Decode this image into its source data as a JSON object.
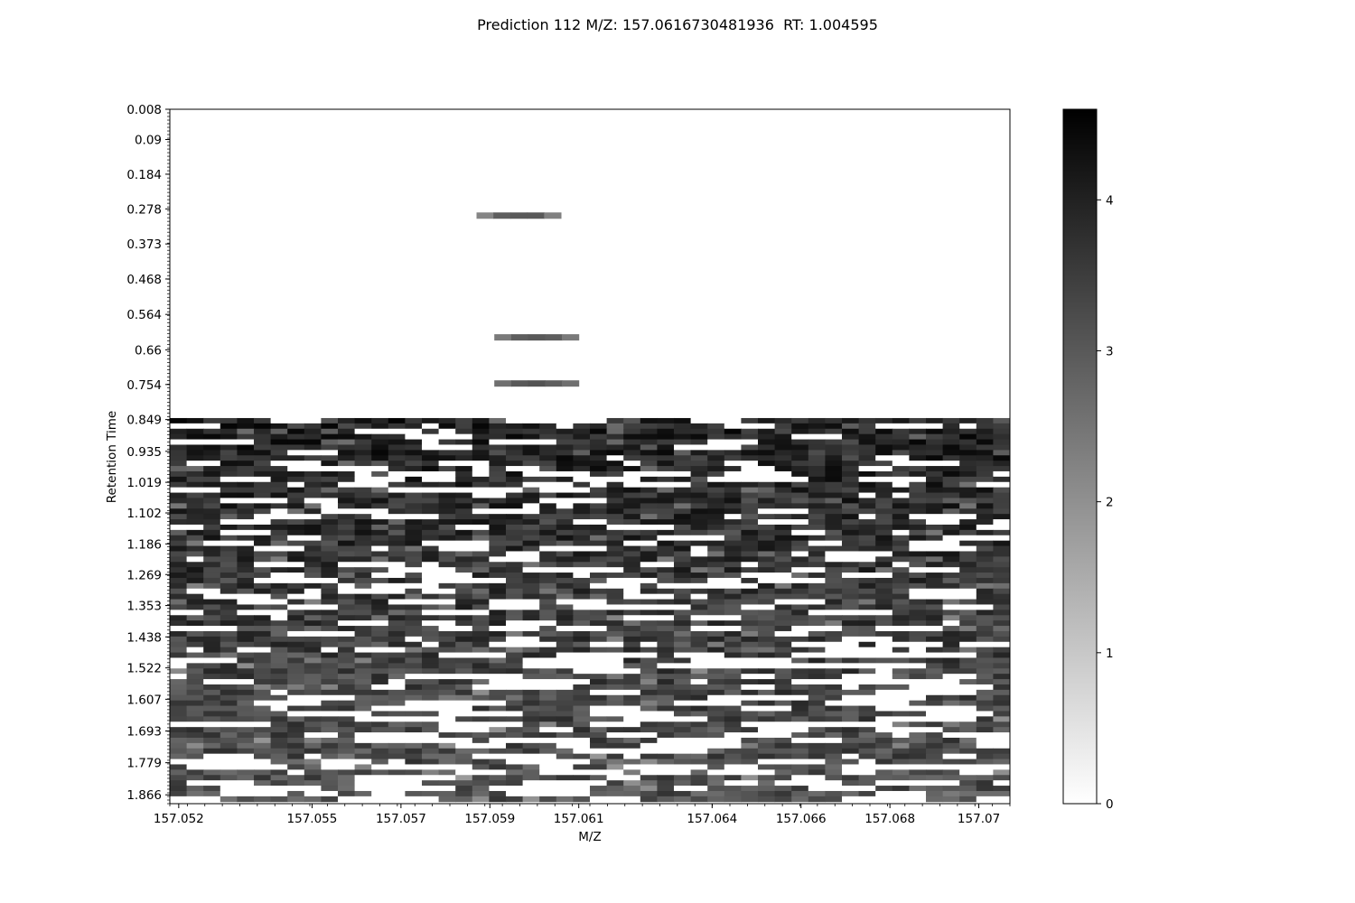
{
  "chart_data": {
    "type": "heatmap",
    "title": "Prediction 112 M/Z: 157.0616730481936  RT: 1.004595",
    "xlabel": "M/Z",
    "ylabel": "Retention Time",
    "xlim": [
      157.0518,
      157.0707
    ],
    "ylim": [
      0.008,
      1.89
    ],
    "x_ticks": [
      157.052,
      157.055,
      157.057,
      157.059,
      157.061,
      157.064,
      157.066,
      157.068,
      157.07
    ],
    "y_ticks": [
      0.008,
      0.09,
      0.184,
      0.278,
      0.373,
      0.468,
      0.564,
      0.66,
      0.754,
      0.849,
      0.935,
      1.019,
      1.102,
      1.186,
      1.269,
      1.353,
      1.438,
      1.522,
      1.607,
      1.693,
      1.779,
      1.866
    ],
    "colormap": "gray_r",
    "colorbar": {
      "min": 0,
      "max": 4.6,
      "ticks": [
        0,
        1,
        2,
        3,
        4
      ]
    },
    "grid": false,
    "values_description_free": true,
    "isolated_peaks": [
      {
        "rt": 0.295,
        "mz_start": 157.0587,
        "mz_end": 157.0606,
        "values": [
          2.2,
          2.9,
          3.0,
          3.0,
          2.3
        ]
      },
      {
        "rt": 0.625,
        "mz_start": 157.0591,
        "mz_end": 157.061,
        "values": [
          2.4,
          2.9,
          3.0,
          2.9,
          2.4
        ]
      },
      {
        "rt": 0.75,
        "mz_start": 157.0591,
        "mz_end": 157.061,
        "values": [
          2.6,
          3.0,
          3.1,
          2.9,
          2.6
        ]
      }
    ],
    "dense_region": {
      "rt_start": 0.84,
      "rt_end": 1.89,
      "mz_start": 157.0518,
      "mz_end": 157.0707,
      "intensity_top": 4.0,
      "intensity_bottom": 3.1,
      "gap_value": 0
    }
  }
}
